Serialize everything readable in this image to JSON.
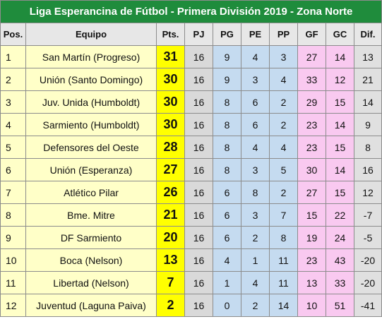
{
  "title": "Liga Esperancina de Fútbol - Primera División 2019 - Zona Norte",
  "headers": {
    "pos": "Pos.",
    "team": "Equipo",
    "pts": "Pts.",
    "pj": "PJ",
    "pg": "PG",
    "pe": "PE",
    "pp": "PP",
    "gf": "GF",
    "gc": "GC",
    "dif": "Dif."
  },
  "rows": [
    {
      "pos": "1",
      "team": "San Martín (Progreso)",
      "pts": "31",
      "pj": "16",
      "pg": "9",
      "pe": "4",
      "pp": "3",
      "gf": "27",
      "gc": "14",
      "dif": "13"
    },
    {
      "pos": "2",
      "team": "Unión (Santo Domingo)",
      "pts": "30",
      "pj": "16",
      "pg": "9",
      "pe": "3",
      "pp": "4",
      "gf": "33",
      "gc": "12",
      "dif": "21"
    },
    {
      "pos": "3",
      "team": "Juv. Unida (Humboldt)",
      "pts": "30",
      "pj": "16",
      "pg": "8",
      "pe": "6",
      "pp": "2",
      "gf": "29",
      "gc": "15",
      "dif": "14"
    },
    {
      "pos": "4",
      "team": "Sarmiento (Humboldt)",
      "pts": "30",
      "pj": "16",
      "pg": "8",
      "pe": "6",
      "pp": "2",
      "gf": "23",
      "gc": "14",
      "dif": "9"
    },
    {
      "pos": "5",
      "team": "Defensores del Oeste",
      "pts": "28",
      "pj": "16",
      "pg": "8",
      "pe": "4",
      "pp": "4",
      "gf": "23",
      "gc": "15",
      "dif": "8"
    },
    {
      "pos": "6",
      "team": "Unión (Esperanza)",
      "pts": "27",
      "pj": "16",
      "pg": "8",
      "pe": "3",
      "pp": "5",
      "gf": "30",
      "gc": "14",
      "dif": "16"
    },
    {
      "pos": "7",
      "team": "Atlético Pilar",
      "pts": "26",
      "pj": "16",
      "pg": "6",
      "pe": "8",
      "pp": "2",
      "gf": "27",
      "gc": "15",
      "dif": "12"
    },
    {
      "pos": "8",
      "team": "Bme. Mitre",
      "pts": "21",
      "pj": "16",
      "pg": "6",
      "pe": "3",
      "pp": "7",
      "gf": "15",
      "gc": "22",
      "dif": "-7"
    },
    {
      "pos": "9",
      "team": "DF Sarmiento",
      "pts": "20",
      "pj": "16",
      "pg": "6",
      "pe": "2",
      "pp": "8",
      "gf": "19",
      "gc": "24",
      "dif": "-5"
    },
    {
      "pos": "10",
      "team": "Boca (Nelson)",
      "pts": "13",
      "pj": "16",
      "pg": "4",
      "pe": "1",
      "pp": "11",
      "gf": "23",
      "gc": "43",
      "dif": "-20"
    },
    {
      "pos": "11",
      "team": "Libertad (Nelson)",
      "pts": "7",
      "pj": "16",
      "pg": "1",
      "pe": "4",
      "pp": "11",
      "gf": "13",
      "gc": "33",
      "dif": "-20"
    },
    {
      "pos": "12",
      "team": "Juventud (Laguna Paiva)",
      "pts": "2",
      "pj": "16",
      "pg": "0",
      "pe": "2",
      "pp": "14",
      "gf": "10",
      "gc": "51",
      "dif": "-41"
    }
  ],
  "colors": {
    "title_bg": "#1f8c3c",
    "header_bg": "#e7e7e7",
    "team_bg": "#ffffc8",
    "points_bg": "#ffff00",
    "played_bg": "#d9d9d9",
    "record_bg": "#c5dbf0",
    "goals_bg": "#f9c9f0",
    "diff_bg": "#e0e0e0"
  }
}
